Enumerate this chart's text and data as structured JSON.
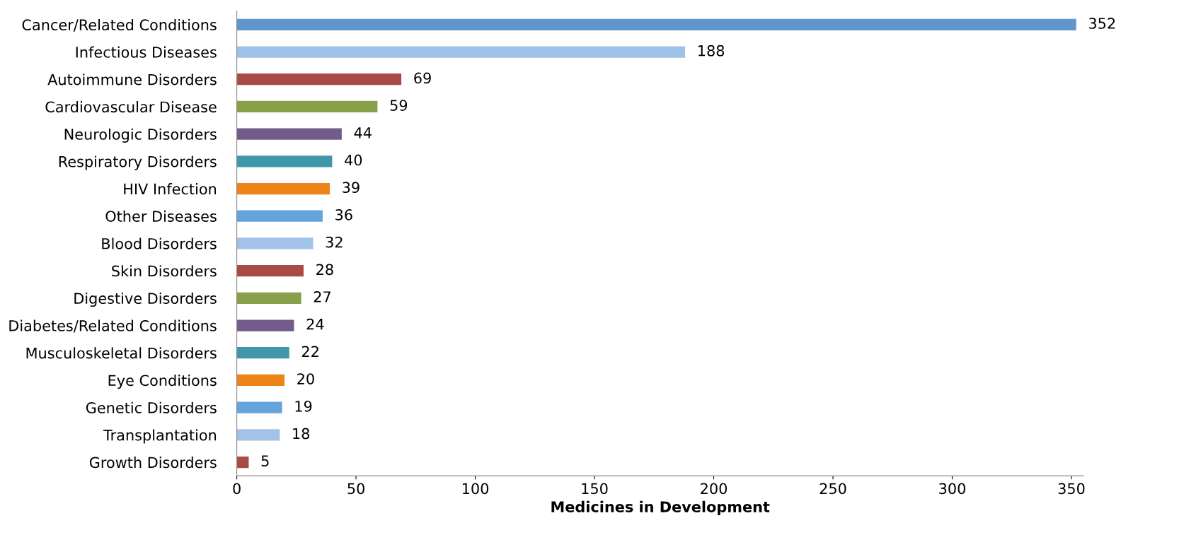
{
  "chart_data": {
    "type": "bar",
    "orientation": "horizontal",
    "xlabel": "Medicines in Development",
    "categories": [
      "Cancer/Related Conditions",
      "Infectious Diseases",
      "Autoimmune Disorders",
      "Cardiovascular Disease",
      "Neurologic Disorders",
      "Respiratory Disorders",
      "HIV Infection",
      "Other Diseases",
      "Blood Disorders",
      "Skin Disorders",
      "Digestive Disorders",
      "Diabetes/Related Conditions",
      "Musculoskeletal Disorders",
      "Eye Conditions",
      "Genetic Disorders",
      "Transplantation",
      "Growth Disorders"
    ],
    "values": [
      352,
      188,
      69,
      59,
      44,
      40,
      39,
      36,
      32,
      28,
      27,
      24,
      22,
      20,
      19,
      18,
      5
    ],
    "colors": [
      "#6196cc",
      "#9fc2e8",
      "#a94b45",
      "#88a04a",
      "#735c8c",
      "#3f97a9",
      "#ec8418",
      "#65a3dc",
      "#a2c2e8",
      "#a94b45",
      "#88a04a",
      "#735c8c",
      "#3f97a9",
      "#ec8418",
      "#65a3dc",
      "#a2c2e8",
      "#a94b45"
    ],
    "xlim": [
      0,
      355
    ],
    "xticks": [
      0,
      50,
      100,
      150,
      200,
      250,
      300,
      350
    ],
    "data_labels": true,
    "grid": false,
    "legend": false
  }
}
